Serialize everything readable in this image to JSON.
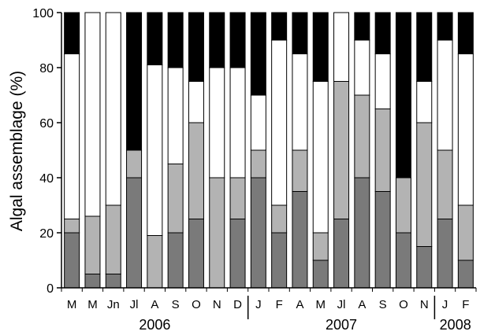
{
  "chart_data": {
    "type": "bar",
    "stacked": true,
    "ylabel": "Algal assemblage (%)",
    "xlabel": "",
    "ylim": [
      0,
      100
    ],
    "yticks": [
      0,
      20,
      40,
      60,
      80,
      100
    ],
    "grid": false,
    "categories": [
      "M",
      "M",
      "Jn",
      "Jl",
      "A",
      "S",
      "O",
      "N",
      "D",
      "J",
      "F",
      "A",
      "M",
      "Jl",
      "A",
      "S",
      "O",
      "N",
      "J",
      "F"
    ],
    "year_groups": [
      {
        "label": "2006",
        "first": 0,
        "last": 8
      },
      {
        "label": "2007",
        "first": 9,
        "last": 17
      },
      {
        "label": "2008",
        "first": 18,
        "last": 19
      }
    ],
    "series": [
      {
        "color": "#7a7a7a",
        "values": [
          20,
          5,
          5,
          40,
          0,
          20,
          25,
          0,
          25,
          40,
          20,
          35,
          10,
          25,
          40,
          35,
          20,
          15,
          25,
          10
        ]
      },
      {
        "color": "#b3b3b3",
        "values": [
          5,
          21,
          25,
          10,
          19,
          25,
          35,
          40,
          15,
          10,
          10,
          15,
          10,
          50,
          30,
          30,
          20,
          45,
          25,
          20
        ]
      },
      {
        "color": "#ffffff",
        "values": [
          60,
          74,
          70,
          0,
          62,
          35,
          15,
          40,
          40,
          20,
          60,
          35,
          55,
          25,
          20,
          20,
          0,
          15,
          40,
          55
        ]
      },
      {
        "color": "#000000",
        "values": [
          15,
          0,
          0,
          50,
          19,
          20,
          25,
          20,
          20,
          30,
          10,
          15,
          25,
          0,
          10,
          15,
          60,
          25,
          10,
          15
        ]
      }
    ]
  }
}
